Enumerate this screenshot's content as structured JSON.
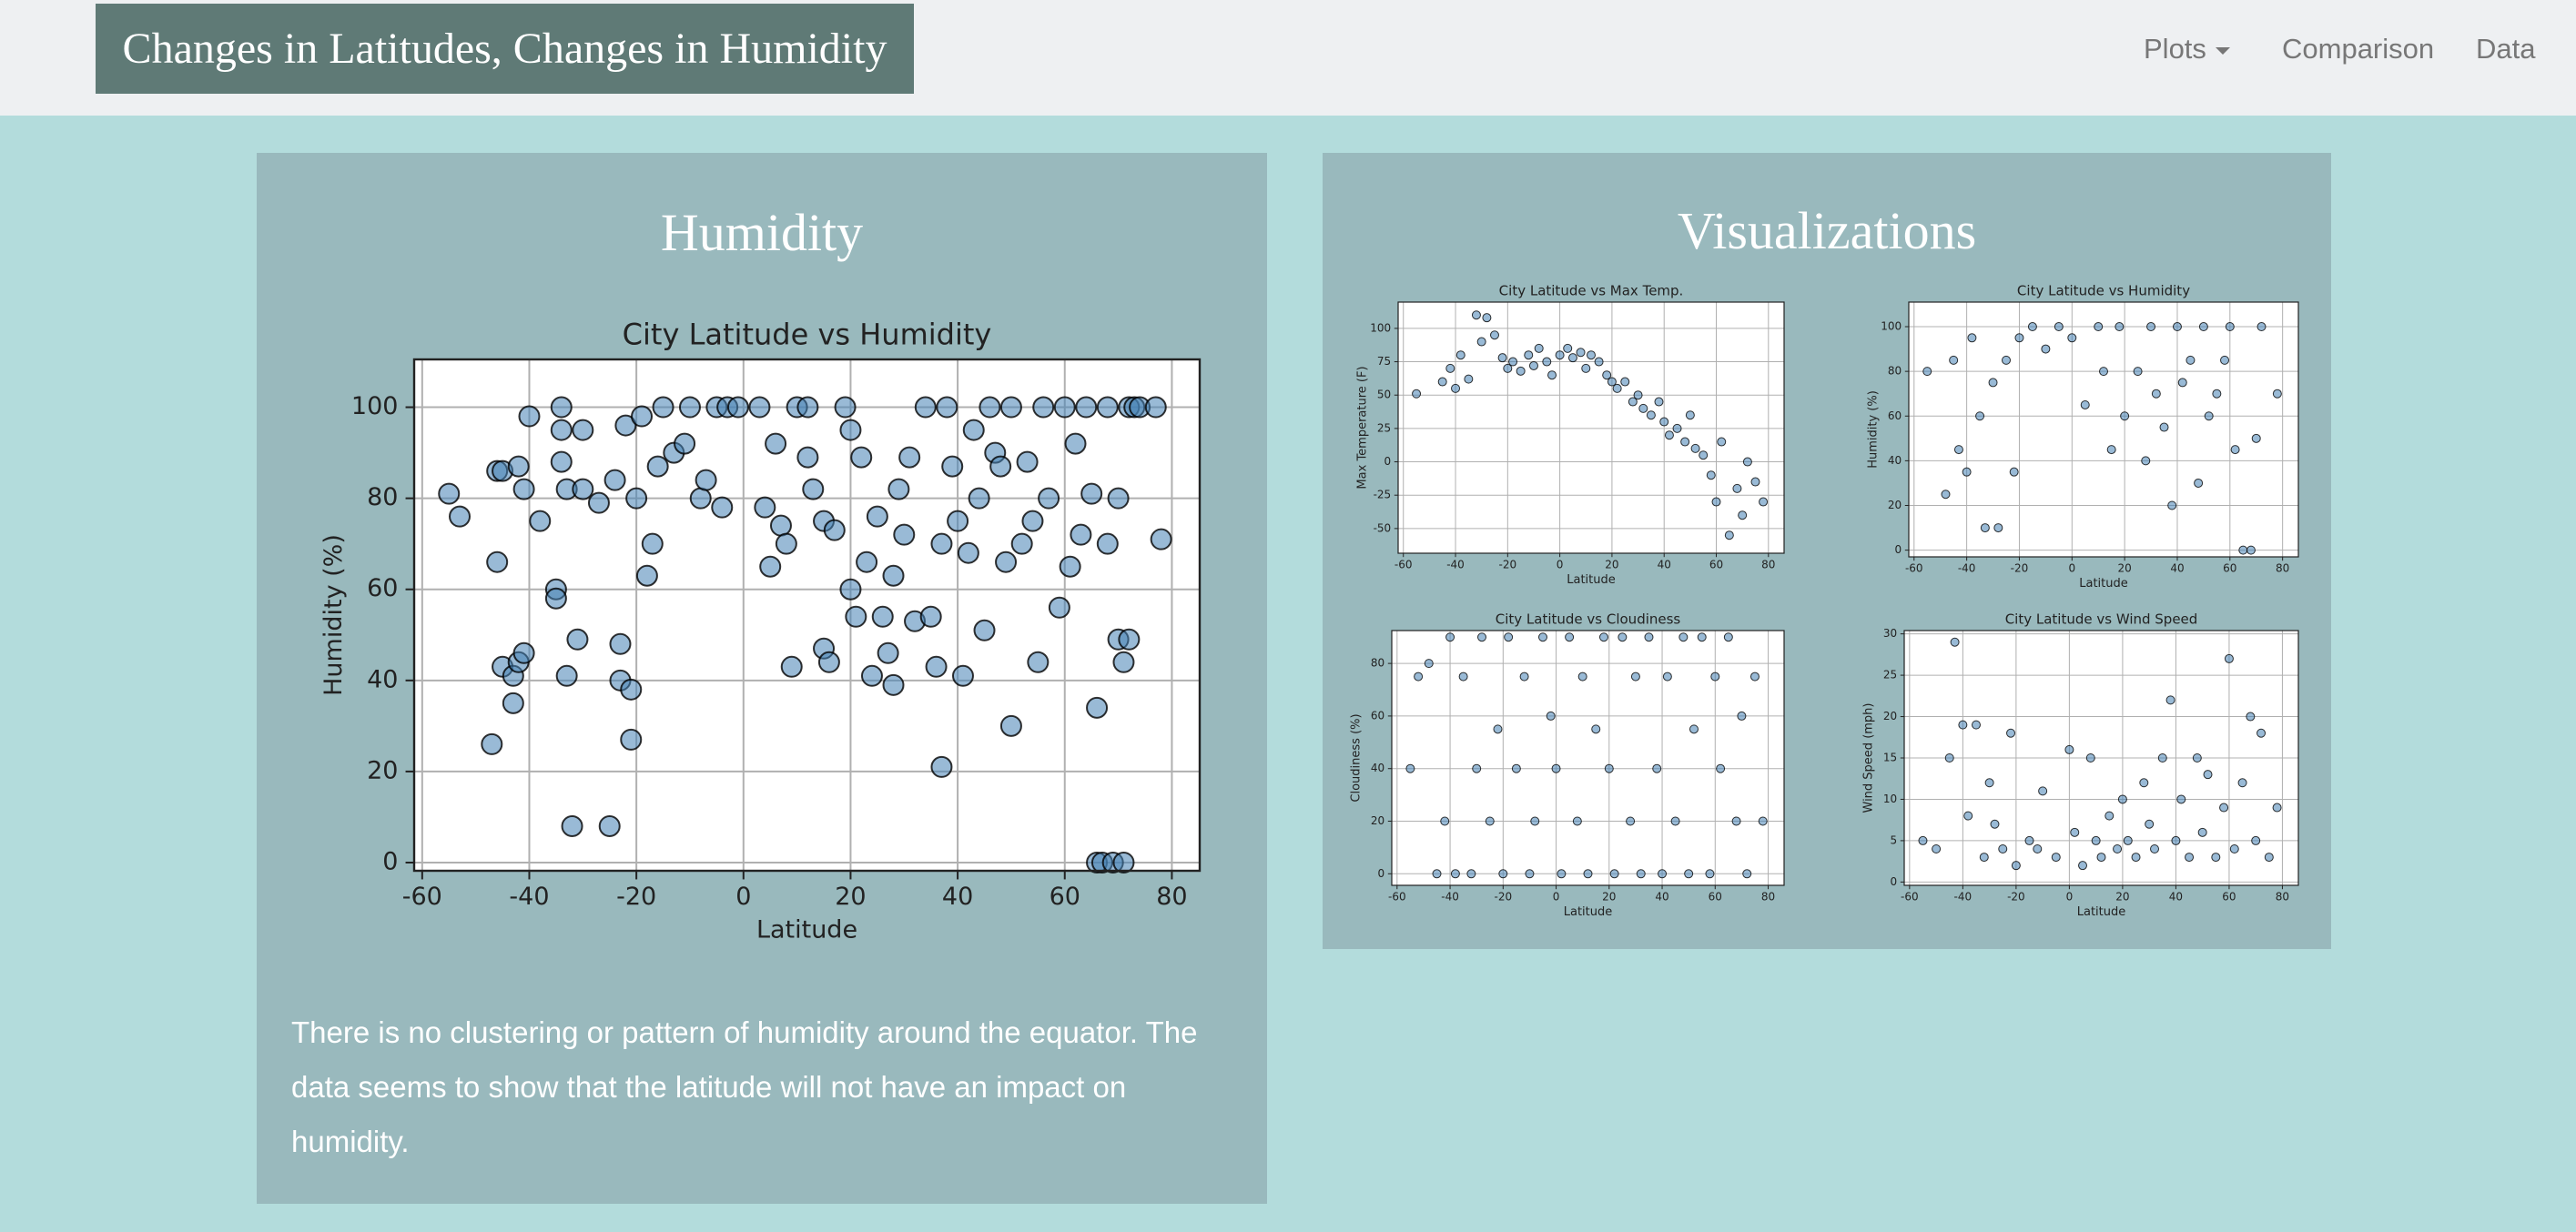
{
  "navbar": {
    "brand": "Changes in Latitudes, Changes in Humidity",
    "items": [
      "Plots",
      "Comparison",
      "Data"
    ]
  },
  "humidity_panel": {
    "title": "Humidity",
    "text": "There is no clustering or pattern of humidity around the equator. The data seems to show that the latitude will not have an impact on humidity."
  },
  "visualizations_panel": {
    "title": "Visualizations"
  },
  "chart_data": [
    {
      "type": "scatter",
      "title": "City Latitude vs Humidity",
      "x_label": "Latitude",
      "y_label": "Humidity (%)",
      "color": "#4682b4",
      "grid": true,
      "xlim": [
        -61.5,
        85.2
      ],
      "xticks": [
        -60,
        -40,
        -20,
        0,
        20,
        40,
        60,
        80
      ],
      "ylim": [
        -1.8,
        110.5
      ],
      "yticks": [
        0,
        20,
        40,
        60,
        80,
        100
      ],
      "x": [
        -55,
        -53,
        -46,
        -45,
        -46,
        -45,
        -47,
        -43,
        -43,
        -42,
        -41,
        -42,
        -41,
        -40,
        -38,
        -35,
        -35,
        -34,
        -34,
        -34,
        -33,
        -33,
        -32,
        -31,
        -30,
        -30,
        -27,
        -25,
        -24,
        -23,
        -23,
        -22,
        -21,
        -21,
        -20,
        -19,
        -18,
        -17,
        -16,
        -15,
        -13,
        -11,
        -10,
        -8,
        -7,
        -5,
        -4,
        -3,
        -1,
        3,
        4,
        5,
        6,
        7,
        8,
        9,
        10,
        12,
        12,
        13,
        15,
        15,
        16,
        17,
        19,
        20,
        20,
        21,
        22,
        23,
        24,
        25,
        26,
        27,
        28,
        28,
        29,
        30,
        31,
        32,
        34,
        35,
        36,
        37,
        37,
        38,
        39,
        40,
        41,
        42,
        43,
        44,
        45,
        46,
        47,
        48,
        49,
        50,
        50,
        52,
        53,
        54,
        55,
        56,
        57,
        59,
        60,
        61,
        62,
        63,
        64,
        65,
        66,
        66,
        67,
        68,
        68,
        69,
        70,
        70,
        71,
        71,
        72,
        72,
        73,
        74,
        78,
        77
      ],
      "values": [
        81,
        76,
        86,
        86,
        66,
        43,
        26,
        35,
        41,
        44,
        46,
        87,
        82,
        98,
        75,
        60,
        58,
        100,
        95,
        88,
        82,
        41,
        8,
        49,
        82,
        95,
        79,
        8,
        84,
        48,
        40,
        96,
        38,
        27,
        80,
        98,
        63,
        70,
        87,
        100,
        90,
        92,
        100,
        80,
        84,
        100,
        78,
        100,
        100,
        100,
        78,
        65,
        92,
        74,
        70,
        43,
        100,
        100,
        89,
        82,
        75,
        47,
        44,
        73,
        100,
        95,
        60,
        54,
        89,
        66,
        41,
        76,
        54,
        46,
        39,
        63,
        82,
        72,
        89,
        53,
        100,
        54,
        43,
        21,
        70,
        100,
        87,
        75,
        41,
        68,
        95,
        80,
        51,
        100,
        90,
        87,
        66,
        30,
        100,
        70,
        88,
        75,
        44,
        100,
        80,
        56,
        100,
        65,
        92,
        72,
        100,
        81,
        34,
        0,
        0,
        100,
        70,
        0,
        49,
        80,
        0,
        44,
        49,
        100,
        100,
        100,
        71,
        100
      ]
    },
    {
      "type": "scatter",
      "title": "City Latitude vs Max Temp.",
      "x_label": "Latitude",
      "y_label": "Max Temperature (F)",
      "color": "#4682b4",
      "grid": true,
      "xlim": [
        -62,
        86
      ],
      "xticks": [
        -60,
        -40,
        -20,
        0,
        20,
        40,
        60,
        80
      ],
      "ylim": [
        -68.5,
        119.7
      ],
      "yticks": [
        -50,
        -25,
        0,
        25,
        50,
        75,
        100
      ],
      "x": [
        -55,
        -45,
        -42,
        -40,
        -38,
        -35,
        -32,
        -30,
        -28,
        -25,
        -22,
        -20,
        -18,
        -15,
        -12,
        -10,
        -8,
        -5,
        -3,
        0,
        3,
        5,
        8,
        10,
        12,
        15,
        18,
        20,
        22,
        25,
        28,
        30,
        32,
        35,
        38,
        40,
        42,
        45,
        48,
        50,
        52,
        55,
        58,
        60,
        62,
        65,
        68,
        70,
        72,
        75,
        78
      ],
      "values": [
        51,
        60,
        70,
        55,
        80,
        62,
        110,
        90,
        108,
        95,
        78,
        70,
        75,
        68,
        80,
        72,
        85,
        75,
        65,
        80,
        85,
        78,
        82,
        70,
        80,
        75,
        65,
        60,
        55,
        60,
        45,
        50,
        40,
        35,
        45,
        30,
        20,
        25,
        15,
        35,
        10,
        5,
        -10,
        -30,
        15,
        -55,
        -20,
        -40,
        0,
        -15,
        -30
      ]
    },
    {
      "type": "scatter",
      "title": "City Latitude vs Humidity",
      "x_label": "Latitude",
      "y_label": "Humidity (%)",
      "color": "#4682b4",
      "grid": true,
      "xlim": [
        -62,
        86
      ],
      "xticks": [
        -60,
        -40,
        -20,
        0,
        20,
        40,
        60,
        80
      ],
      "ylim": [
        -3,
        111
      ],
      "yticks": [
        0,
        20,
        40,
        60,
        80,
        100
      ],
      "x": [
        -55,
        -48,
        -45,
        -43,
        -40,
        -38,
        -35,
        -33,
        -30,
        -28,
        -25,
        -22,
        -20,
        -15,
        -10,
        -5,
        0,
        5,
        10,
        12,
        15,
        18,
        20,
        25,
        28,
        30,
        32,
        35,
        38,
        40,
        42,
        45,
        48,
        50,
        52,
        55,
        58,
        60,
        62,
        65,
        68,
        70,
        72,
        78
      ],
      "values": [
        80,
        25,
        85,
        45,
        35,
        95,
        60,
        10,
        75,
        10,
        85,
        35,
        95,
        100,
        90,
        100,
        95,
        65,
        100,
        80,
        45,
        100,
        60,
        80,
        40,
        100,
        70,
        55,
        20,
        100,
        75,
        85,
        30,
        100,
        60,
        70,
        85,
        100,
        45,
        0,
        0,
        50,
        100,
        70
      ]
    },
    {
      "type": "scatter",
      "title": "City Latitude vs Cloudiness",
      "x_label": "Latitude",
      "y_label": "Cloudiness (%)",
      "color": "#4682b4",
      "grid": true,
      "xlim": [
        -62,
        86
      ],
      "xticks": [
        -60,
        -40,
        -20,
        0,
        20,
        40,
        60,
        80
      ],
      "ylim": [
        -4.4,
        92.5
      ],
      "yticks": [
        0,
        20,
        40,
        60,
        80
      ],
      "x": [
        -55,
        -52,
        -48,
        -45,
        -42,
        -40,
        -38,
        -35,
        -32,
        -30,
        -28,
        -25,
        -22,
        -20,
        -18,
        -15,
        -12,
        -10,
        -8,
        -5,
        -2,
        0,
        2,
        5,
        8,
        10,
        12,
        15,
        18,
        20,
        22,
        25,
        28,
        30,
        32,
        35,
        38,
        40,
        42,
        45,
        48,
        50,
        52,
        55,
        58,
        60,
        62,
        65,
        68,
        70,
        72,
        75,
        78
      ],
      "values": [
        40,
        75,
        80,
        0,
        20,
        90,
        0,
        75,
        0,
        40,
        90,
        20,
        55,
        0,
        90,
        40,
        75,
        0,
        20,
        90,
        60,
        40,
        0,
        90,
        20,
        75,
        0,
        55,
        90,
        40,
        0,
        90,
        20,
        75,
        0,
        90,
        40,
        0,
        75,
        20,
        90,
        0,
        55,
        90,
        0,
        75,
        40,
        90,
        20,
        60,
        0,
        75,
        20
      ]
    },
    {
      "type": "scatter",
      "title": "City Latitude vs Wind Speed",
      "x_label": "Latitude",
      "y_label": "Wind Speed (mph)",
      "color": "#4682b4",
      "grid": true,
      "xlim": [
        -62,
        86
      ],
      "xticks": [
        -60,
        -40,
        -20,
        0,
        20,
        40,
        60,
        80
      ],
      "ylim": [
        -0.4,
        30.4
      ],
      "yticks": [
        0,
        5,
        10,
        15,
        20,
        25,
        30
      ],
      "x": [
        -55,
        -50,
        -45,
        -43,
        -40,
        -38,
        -35,
        -32,
        -30,
        -28,
        -25,
        -22,
        -20,
        -15,
        -12,
        -10,
        -5,
        0,
        2,
        5,
        8,
        10,
        12,
        15,
        18,
        20,
        22,
        25,
        28,
        30,
        32,
        35,
        38,
        40,
        42,
        45,
        48,
        50,
        52,
        55,
        58,
        60,
        62,
        65,
        68,
        70,
        72,
        75,
        78
      ],
      "values": [
        5,
        4,
        15,
        29,
        19,
        8,
        19,
        3,
        12,
        7,
        4,
        18,
        2,
        5,
        4,
        11,
        3,
        16,
        6,
        2,
        15,
        5,
        3,
        8,
        4,
        10,
        5,
        3,
        12,
        7,
        4,
        15,
        22,
        5,
        10,
        3,
        15,
        6,
        13,
        3,
        9,
        27,
        4,
        12,
        20,
        5,
        18,
        3,
        9
      ]
    }
  ]
}
